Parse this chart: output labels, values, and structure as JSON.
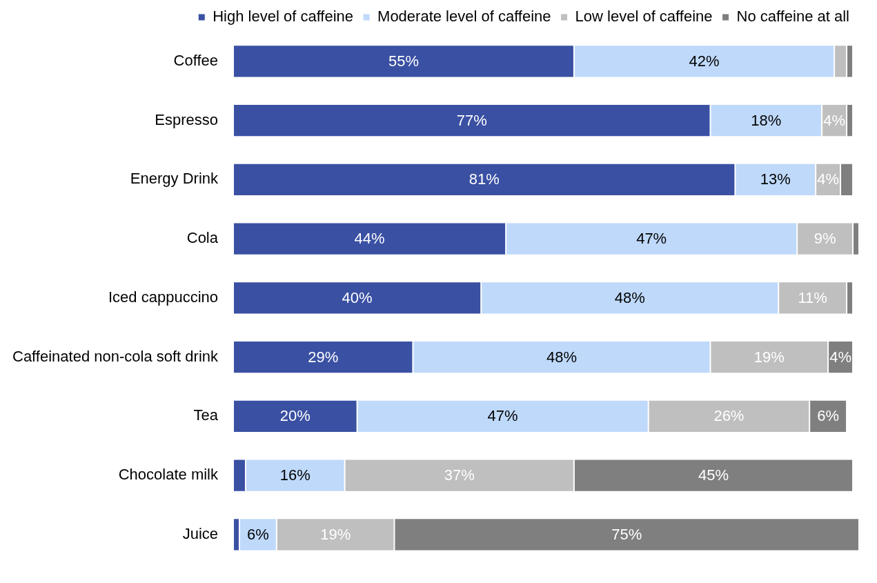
{
  "chart_data": {
    "type": "bar",
    "orientation": "horizontal",
    "stacked": true,
    "legend": "top right",
    "tick_labels": "y",
    "xlim": [
      0,
      101
    ],
    "categories": [
      "Coffee",
      "Espresso",
      "Energy Drink",
      "Cola",
      "Iced cappuccino",
      "Caffeinated non-cola soft drink",
      "Tea",
      "Chocolate milk",
      "Juice"
    ],
    "series": [
      {
        "name": "High level of caffeine",
        "color": "#3a50a3",
        "values": [
          55,
          77,
          81,
          44,
          40,
          29,
          20,
          2,
          1
        ],
        "value_labels": [
          "55%",
          "77%",
          "81%",
          "44%",
          "40%",
          "29%",
          "20%",
          null,
          null
        ]
      },
      {
        "name": "Moderate level of caffeine",
        "color": "#bfd9fb",
        "values": [
          42,
          18,
          13,
          47,
          48,
          48,
          47,
          16,
          6
        ],
        "value_labels": [
          "42%",
          "18%",
          "13%",
          "47%",
          "48%",
          "48%",
          "47%",
          "16%",
          "6%"
        ]
      },
      {
        "name": "Low level of caffeine",
        "color": "#bfbfbf",
        "values": [
          2,
          4,
          4,
          9,
          11,
          19,
          26,
          37,
          19
        ],
        "value_labels": [
          null,
          "4%",
          "4%",
          "9%",
          "11%",
          "19%",
          "26%",
          "37%",
          "19%"
        ]
      },
      {
        "name": "No caffeine at all",
        "color": "#7f7f7f",
        "values": [
          1,
          1,
          2,
          1,
          1,
          4,
          6,
          45,
          75
        ],
        "value_labels": [
          null,
          null,
          null,
          null,
          null,
          "4%",
          "6%",
          "45%",
          "75%"
        ]
      }
    ]
  }
}
